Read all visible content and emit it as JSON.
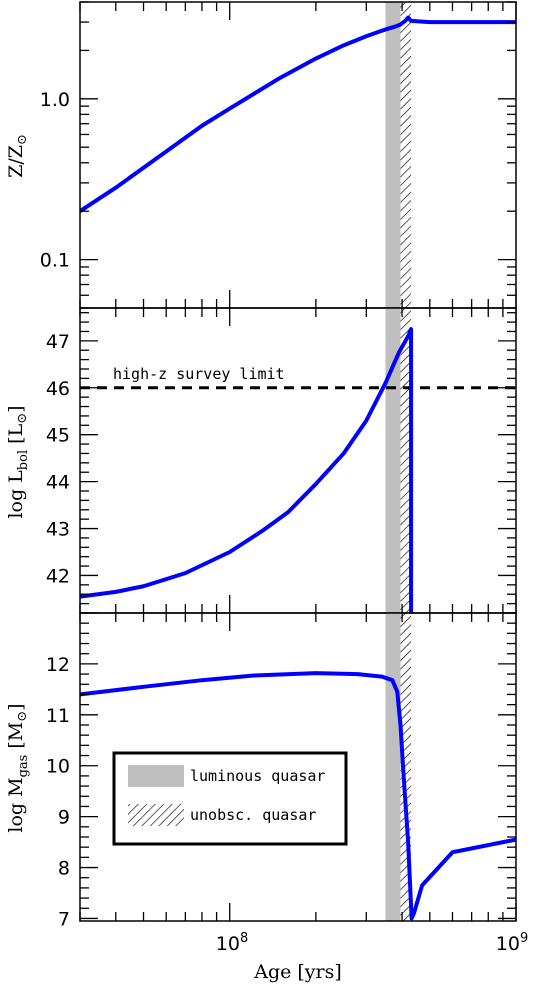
{
  "chart_data": {
    "type": "line",
    "x_axis": {
      "label": "Age [yrs]",
      "scale": "log",
      "range": [
        30000000,
        1000000000
      ],
      "ticks": [
        {
          "value": 100000000,
          "label": "10^8"
        },
        {
          "value": 1000000000,
          "label": "10^9"
        }
      ]
    },
    "shaded_regions": [
      {
        "name": "luminous quasar",
        "x_start": 350000000,
        "x_end": 395000000,
        "style": "solid gray",
        "color": "#bfbfbf"
      },
      {
        "name": "unobsc. quasar",
        "x_start": 395000000,
        "x_end": 430000000,
        "style": "hatched"
      }
    ],
    "series_color": "#0000ff",
    "panels": [
      {
        "id": "metallicity",
        "ylabel": "Z/Z⊙",
        "yscale": "log",
        "ylim": [
          0.05,
          4.0
        ],
        "ytick_labels": [
          {
            "value": 0.1,
            "label": "0.1"
          },
          {
            "value": 1.0,
            "label": "1.0"
          }
        ],
        "x": [
          30000000,
          40000000,
          60000000,
          80000000,
          100000000,
          150000000,
          200000000,
          250000000,
          300000000,
          350000000,
          380000000,
          395000000,
          410000000,
          420000000,
          430000000,
          500000000,
          600000000,
          800000000,
          1000000000
        ],
        "y": [
          0.2,
          0.28,
          0.47,
          0.68,
          0.87,
          1.35,
          1.78,
          2.15,
          2.45,
          2.7,
          2.82,
          2.9,
          3.05,
          3.2,
          3.05,
          3.0,
          3.0,
          3.0,
          3.0
        ]
      },
      {
        "id": "luminosity",
        "ylabel": "log Lbol [L⊙]",
        "yscale": "linear",
        "ylim": [
          41.2,
          47.7
        ],
        "ytick_labels": [
          {
            "value": 42,
            "label": "42"
          },
          {
            "value": 43,
            "label": "43"
          },
          {
            "value": 44,
            "label": "44"
          },
          {
            "value": 45,
            "label": "45"
          },
          {
            "value": 46,
            "label": "46"
          },
          {
            "value": 47,
            "label": "47"
          }
        ],
        "x": [
          30000000,
          40000000,
          50000000,
          70000000,
          100000000,
          130000000,
          160000000,
          200000000,
          250000000,
          300000000,
          350000000,
          390000000,
          420000000,
          430000000,
          430000000
        ],
        "y": [
          41.55,
          41.65,
          41.77,
          42.05,
          42.5,
          42.95,
          43.35,
          43.95,
          44.6,
          45.3,
          46.1,
          46.75,
          47.1,
          47.25,
          41.2
        ],
        "reference_line": {
          "y": 46,
          "style": "dashed",
          "label": "high-z survey limit"
        }
      },
      {
        "id": "gas_mass",
        "ylabel": "log Mgas [M⊙]",
        "yscale": "linear",
        "ylim": [
          6.95,
          13.0
        ],
        "ytick_labels": [
          {
            "value": 7,
            "label": "7"
          },
          {
            "value": 8,
            "label": "8"
          },
          {
            "value": 9,
            "label": "9"
          },
          {
            "value": 10,
            "label": "10"
          },
          {
            "value": 11,
            "label": "11"
          },
          {
            "value": 12,
            "label": "12"
          }
        ],
        "x": [
          30000000,
          50000000,
          80000000,
          120000000,
          200000000,
          280000000,
          340000000,
          370000000,
          385000000,
          395000000,
          405000000,
          420000000,
          432000000,
          440000000,
          470000000,
          600000000,
          1000000000
        ],
        "y": [
          11.4,
          11.55,
          11.68,
          11.77,
          11.82,
          11.8,
          11.75,
          11.68,
          11.45,
          10.8,
          9.8,
          8.5,
          7.0,
          7.1,
          7.65,
          8.3,
          8.55
        ]
      }
    ],
    "legend": {
      "placement": "lower-left",
      "entries": [
        {
          "label": "luminous quasar",
          "style": "solid gray"
        },
        {
          "label": "unobsc. quasar",
          "style": "hatched"
        }
      ]
    }
  }
}
